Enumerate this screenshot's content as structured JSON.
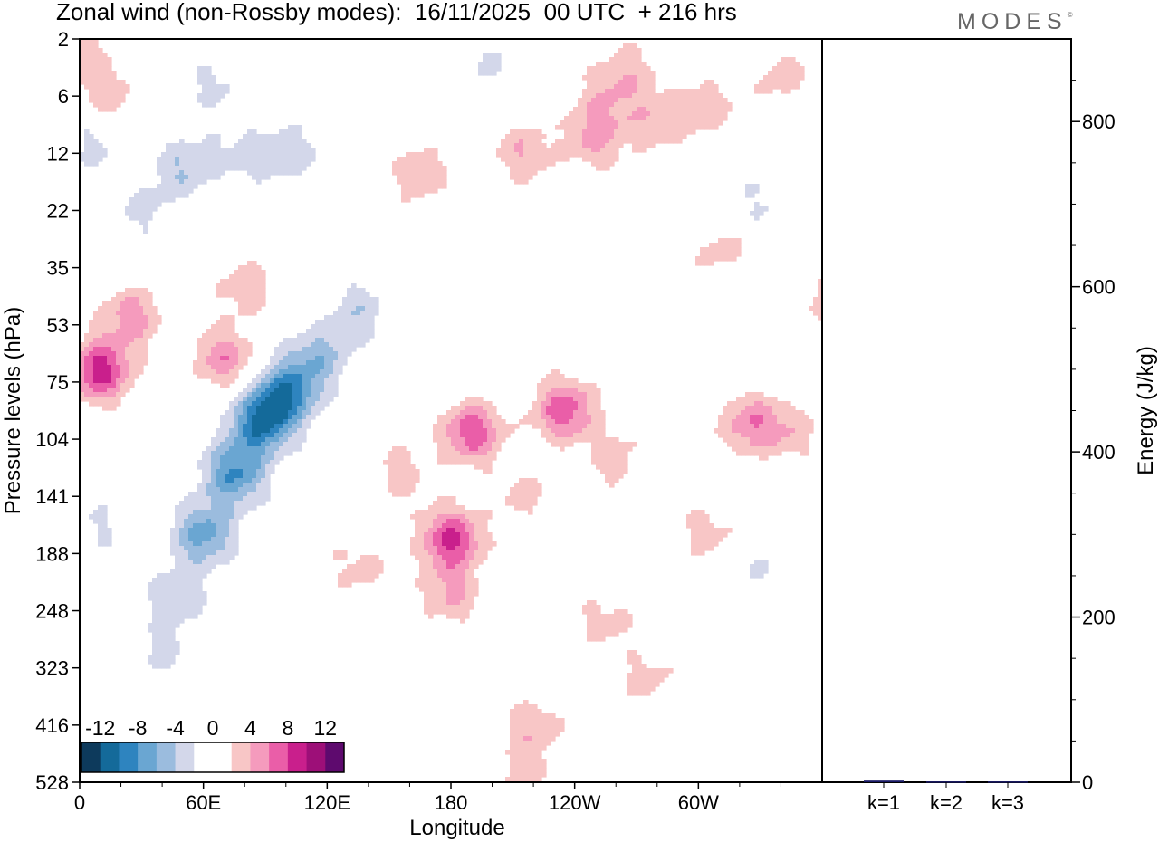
{
  "chart_data": {
    "type": "heatmap",
    "title": "Zonal wind (non-Rossby modes):  16/11/2025  00 UTC  + 216 hrs",
    "brand": "MODES",
    "xlabel": "Longitude",
    "ylabel": "Pressure levels (hPa)",
    "x_ticks": [
      "0",
      "60E",
      "120E",
      "180",
      "120W",
      "60W"
    ],
    "y_ticks": [
      "2",
      "6",
      "12",
      "22",
      "35",
      "53",
      "75",
      "104",
      "141",
      "188",
      "248",
      "323",
      "416",
      "528"
    ],
    "colorbar": {
      "tick_labels": [
        "-12",
        "-8",
        "-4",
        "0",
        "4",
        "8",
        "12"
      ],
      "bins": [
        -14,
        -12,
        -10,
        -8,
        -6,
        -4,
        -2,
        0,
        2,
        4,
        6,
        8,
        10,
        12,
        14
      ],
      "colors": [
        "#0d3a5c",
        "#146a9a",
        "#2e84bf",
        "#6aa6d2",
        "#9bbcde",
        "#d3d7ea",
        "#ffffff",
        "#ffffff",
        "#f8c6c6",
        "#f59bbd",
        "#ea5ea8",
        "#c91f8c",
        "#9d0f78",
        "#5e0a6e"
      ]
    },
    "blobs": [
      {
        "lon": 88,
        "p": 95,
        "a": -9.5
      },
      {
        "lon": 60,
        "p": 170,
        "a": -7
      },
      {
        "lon": 75,
        "p": 125,
        "a": -8
      },
      {
        "lon": 100,
        "p": 80,
        "a": -8.5
      },
      {
        "lon": 47,
        "p": 230,
        "a": -4
      },
      {
        "lon": 115,
        "p": 65,
        "a": -5
      },
      {
        "lon": 135,
        "p": 48,
        "a": -3.5
      },
      {
        "lon": 40,
        "p": 300,
        "a": -2.5
      },
      {
        "lon": 50,
        "p": 14,
        "a": -4
      },
      {
        "lon": 30,
        "p": 22,
        "a": -2.5
      },
      {
        "lon": 80,
        "p": 12,
        "a": -3
      },
      {
        "lon": 105,
        "p": 12,
        "a": -3
      },
      {
        "lon": 65,
        "p": 5,
        "a": -2.5
      },
      {
        "lon": 5,
        "p": 11,
        "a": -2.5
      },
      {
        "lon": 200,
        "p": 3,
        "a": -2.2
      },
      {
        "lon": 330,
        "p": 20,
        "a": -2.2
      },
      {
        "lon": 325,
        "p": 200,
        "a": -2.2
      },
      {
        "lon": 8,
        "p": 165,
        "a": -2.2
      },
      {
        "lon": 10,
        "p": 70,
        "a": 9
      },
      {
        "lon": 25,
        "p": 50,
        "a": 5
      },
      {
        "lon": 70,
        "p": 65,
        "a": 5.5
      },
      {
        "lon": 80,
        "p": 40,
        "a": 3.5
      },
      {
        "lon": 180,
        "p": 175,
        "a": 8.5
      },
      {
        "lon": 180,
        "p": 230,
        "a": 4
      },
      {
        "lon": 190,
        "p": 100,
        "a": 7.5
      },
      {
        "lon": 235,
        "p": 88,
        "a": 7.5
      },
      {
        "lon": 325,
        "p": 95,
        "a": 5.5
      },
      {
        "lon": 345,
        "p": 100,
        "a": 3
      },
      {
        "lon": 260,
        "p": 115,
        "a": 3
      },
      {
        "lon": 215,
        "p": 140,
        "a": 2.8
      },
      {
        "lon": 155,
        "p": 125,
        "a": 3
      },
      {
        "lon": 135,
        "p": 200,
        "a": 2.8
      },
      {
        "lon": 220,
        "p": 420,
        "a": 3.5
      },
      {
        "lon": 215,
        "p": 520,
        "a": 3
      },
      {
        "lon": 255,
        "p": 260,
        "a": 2.8
      },
      {
        "lon": 275,
        "p": 340,
        "a": 2.8
      },
      {
        "lon": 305,
        "p": 170,
        "a": 3
      },
      {
        "lon": 165,
        "p": 15,
        "a": 3.5
      },
      {
        "lon": 215,
        "p": 12,
        "a": 4
      },
      {
        "lon": 250,
        "p": 10,
        "a": 4.5
      },
      {
        "lon": 280,
        "p": 8,
        "a": 3.5
      },
      {
        "lon": 305,
        "p": 7,
        "a": 3
      },
      {
        "lon": 340,
        "p": 4,
        "a": 3
      },
      {
        "lon": 15,
        "p": 6,
        "a": 3
      },
      {
        "lon": 255,
        "p": 6,
        "a": 3
      },
      {
        "lon": 310,
        "p": 30,
        "a": 2.8
      },
      {
        "lon": 0,
        "p": 3,
        "a": 3
      },
      {
        "lon": 360,
        "p": 45,
        "a": 2.5
      },
      {
        "lon": 268,
        "p": 3.5,
        "a": 2.6
      }
    ],
    "energy_panel": {
      "ylabel": "Energy (J/kg)",
      "y_ticks": [
        "0",
        "200",
        "400",
        "600",
        "800"
      ],
      "ylim": [
        0,
        900
      ],
      "categories": [
        "k=1",
        "k=2",
        "k=3"
      ],
      "values": [
        2,
        1,
        1
      ],
      "bar_color": "#1a1a66"
    }
  }
}
